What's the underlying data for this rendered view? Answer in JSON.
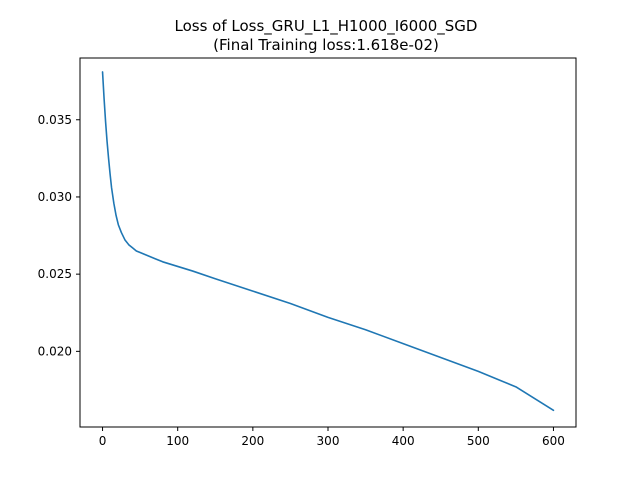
{
  "chart_data": {
    "type": "line",
    "title": "Loss of Loss_GRU_L1_H1000_I6000_SGD",
    "subtitle": "(Final Training loss:1.618e-02)",
    "xlabel": "",
    "ylabel": "",
    "xlim": [
      -30,
      630
    ],
    "ylim": [
      0.0151,
      0.039
    ],
    "xticks": [
      0,
      100,
      200,
      300,
      400,
      500,
      600
    ],
    "yticks": [
      0.02,
      0.025,
      0.03,
      0.035
    ],
    "xtick_labels": [
      "0",
      "100",
      "200",
      "300",
      "400",
      "500",
      "600"
    ],
    "ytick_labels": [
      "0.020",
      "0.025",
      "0.030",
      "0.035"
    ],
    "grid": false,
    "legend": "none",
    "series": [
      {
        "color": "#1f77b4",
        "x": [
          0,
          2,
          4,
          6,
          8,
          10,
          12,
          15,
          18,
          21,
          25,
          30,
          35,
          40,
          45,
          50,
          60,
          70,
          80,
          100,
          120,
          150,
          200,
          250,
          300,
          350,
          400,
          450,
          500,
          550,
          600
        ],
        "y": [
          0.0381,
          0.0364,
          0.0349,
          0.0336,
          0.0325,
          0.0315,
          0.0306,
          0.0296,
          0.0288,
          0.0282,
          0.0277,
          0.0272,
          0.0269,
          0.0267,
          0.0265,
          0.0264,
          0.0262,
          0.026,
          0.0258,
          0.0255,
          0.0252,
          0.0247,
          0.0239,
          0.0231,
          0.0222,
          0.0214,
          0.0205,
          0.0196,
          0.0187,
          0.0177,
          0.01618
        ]
      }
    ]
  }
}
